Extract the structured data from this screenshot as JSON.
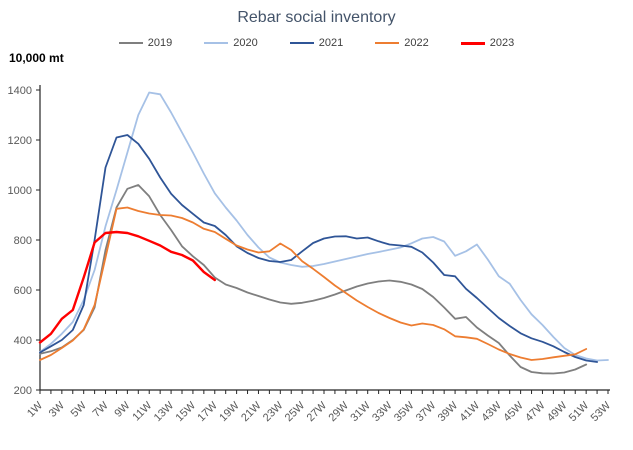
{
  "chart_data": {
    "type": "line",
    "title": "Rebar social inventory",
    "unit_label": "10,000 mt",
    "xlabel": "",
    "ylabel": "",
    "ylim": [
      200,
      1400
    ],
    "y_tick_step": 200,
    "grid": false,
    "legend_position": "top-center",
    "x_label_every": 2,
    "x_label_rotation_deg": -45,
    "categories": [
      "1W",
      "2W",
      "3W",
      "4W",
      "5W",
      "6W",
      "7W",
      "8W",
      "9W",
      "10W",
      "11W",
      "12W",
      "13W",
      "14W",
      "15W",
      "16W",
      "17W",
      "18W",
      "19W",
      "20W",
      "21W",
      "22W",
      "23W",
      "24W",
      "25W",
      "26W",
      "27W",
      "28W",
      "29W",
      "30W",
      "31W",
      "32W",
      "33W",
      "34W",
      "35W",
      "36W",
      "37W",
      "38W",
      "39W",
      "40W",
      "41W",
      "42W",
      "43W",
      "44W",
      "45W",
      "46W",
      "47W",
      "48W",
      "49W",
      "50W",
      "51W",
      "52W",
      "53W"
    ],
    "series": [
      {
        "name": "2019",
        "color": "#7F7F7F",
        "line_width": 1.8,
        "values": [
          345,
          355,
          370,
          400,
          440,
          530,
          760,
          930,
          1005,
          1020,
          975,
          900,
          840,
          775,
          735,
          700,
          650,
          622,
          608,
          590,
          576,
          562,
          550,
          545,
          549,
          557,
          568,
          582,
          598,
          614,
          626,
          634,
          638,
          633,
          622,
          604,
          572,
          530,
          485,
          492,
          450,
          418,
          388,
          338,
          292,
          272,
          267,
          266,
          270,
          282,
          302
        ]
      },
      {
        "name": "2020",
        "color": "#A6C1E6",
        "line_width": 1.8,
        "values": [
          352,
          385,
          425,
          472,
          560,
          680,
          855,
          1000,
          1150,
          1300,
          1390,
          1383,
          1310,
          1230,
          1150,
          1066,
          987,
          930,
          878,
          820,
          770,
          730,
          710,
          700,
          693,
          696,
          704,
          714,
          724,
          734,
          744,
          752,
          761,
          770,
          787,
          806,
          812,
          794,
          737,
          755,
          782,
          722,
          655,
          625,
          560,
          503,
          460,
          412,
          368,
          340,
          326,
          318,
          320
        ]
      },
      {
        "name": "2021",
        "color": "#2F5597",
        "line_width": 1.8,
        "values": [
          350,
          375,
          400,
          440,
          540,
          800,
          1090,
          1210,
          1220,
          1185,
          1125,
          1050,
          985,
          940,
          905,
          870,
          856,
          820,
          775,
          748,
          728,
          716,
          712,
          720,
          755,
          788,
          806,
          814,
          815,
          806,
          810,
          795,
          782,
          778,
          773,
          750,
          710,
          660,
          655,
          605,
          568,
          528,
          488,
          456,
          427,
          407,
          393,
          375,
          352,
          332,
          318,
          312
        ]
      },
      {
        "name": "2022",
        "color": "#ED7D31",
        "line_width": 1.8,
        "values": [
          320,
          340,
          368,
          398,
          442,
          540,
          730,
          925,
          930,
          916,
          906,
          900,
          898,
          888,
          870,
          845,
          832,
          805,
          778,
          762,
          750,
          755,
          786,
          760,
          715,
          685,
          652,
          618,
          588,
          558,
          532,
          508,
          488,
          470,
          458,
          466,
          460,
          443,
          415,
          411,
          405,
          384,
          362,
          344,
          330,
          320,
          324,
          331,
          337,
          343,
          364
        ]
      },
      {
        "name": "2023",
        "color": "#FF0000",
        "line_width": 2.4,
        "values": [
          390,
          425,
          485,
          520,
          650,
          790,
          828,
          832,
          828,
          815,
          797,
          778,
          753,
          740,
          718,
          672,
          640
        ]
      }
    ],
    "axis_colors": {
      "axis_line": "#262626",
      "tick_text": "#595959"
    }
  }
}
